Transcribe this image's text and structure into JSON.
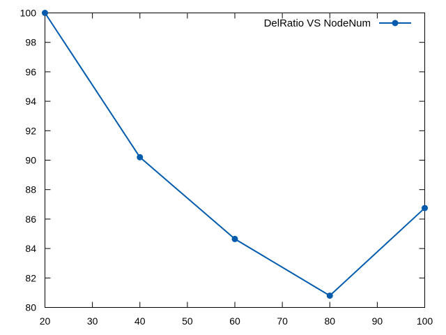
{
  "chart_data": {
    "type": "line",
    "title": "",
    "xlabel": "",
    "ylabel": "",
    "xlim": [
      20,
      100
    ],
    "ylim": [
      80,
      100
    ],
    "x_ticks": [
      20,
      30,
      40,
      50,
      60,
      70,
      80,
      90,
      100
    ],
    "y_ticks": [
      80,
      82,
      84,
      86,
      88,
      90,
      92,
      94,
      96,
      98,
      100
    ],
    "grid": false,
    "legend": "top-right",
    "series": [
      {
        "name": "DelRatio VS NodeNum",
        "color": "#005bac",
        "marker": "circle",
        "x": [
          20,
          40,
          60,
          80,
          100
        ],
        "y": [
          100,
          90.2,
          84.65,
          80.8,
          86.75
        ]
      }
    ]
  }
}
